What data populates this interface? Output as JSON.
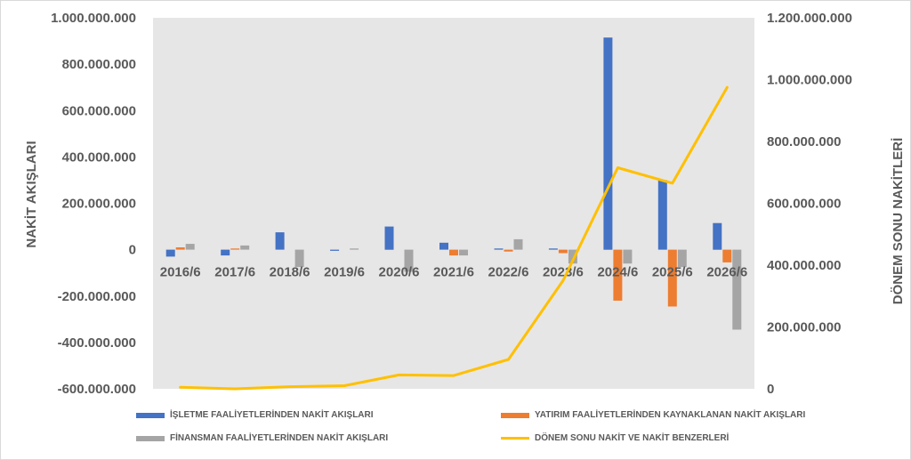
{
  "chart_data": {
    "type": "bar",
    "categories": [
      "2016/6",
      "2017/6",
      "2018/6",
      "2019/6",
      "2020/6",
      "2021/6",
      "2022/6",
      "2023/6",
      "2024/6",
      "2025/6",
      "2026/6"
    ],
    "series": [
      {
        "name": "İŞLETME FAALİYETLERİNDEN NAKİT AKIŞLARI",
        "type": "bar",
        "axis": "left",
        "color": "#4472C4",
        "values": [
          -30000000,
          -25000000,
          75000000,
          -5000000,
          100000000,
          30000000,
          5000000,
          5000000,
          915000000,
          300000000,
          115000000
        ]
      },
      {
        "name": "YATIRIM FAALİYETLERİNDEN KAYNAKLANAN NAKİT AKIŞLARI",
        "type": "bar",
        "axis": "left",
        "color": "#ED7D31",
        "values": [
          10000000,
          5000000,
          0,
          0,
          0,
          -25000000,
          -8000000,
          -15000000,
          -220000000,
          -245000000,
          -55000000
        ]
      },
      {
        "name": "FİNANSMAN FAALİYETLERİNDEN NAKİT AKIŞLARI",
        "type": "bar",
        "axis": "left",
        "color": "#A5A5A5",
        "values": [
          25000000,
          18000000,
          -75000000,
          5000000,
          -95000000,
          -25000000,
          45000000,
          -60000000,
          -60000000,
          -75000000,
          -345000000
        ]
      },
      {
        "name": "DÖNEM SONU NAKİT VE NAKİT BENZERLERİ",
        "type": "line",
        "axis": "right",
        "color": "#FFC000",
        "values": [
          5000000,
          0,
          7000000,
          10000000,
          45000000,
          43000000,
          95000000,
          350000000,
          715000000,
          665000000,
          975000000
        ]
      }
    ],
    "yaxis_left": {
      "label": "NAKİT AKIŞLARI",
      "min": -600000000,
      "max": 1000000000,
      "ticks": [
        "-600.000.000",
        "-400.000.000",
        "-200.000.000",
        "0",
        "200.000.000",
        "400.000.000",
        "600.000.000",
        "800.000.000",
        "1.000.000.000"
      ]
    },
    "yaxis_right": {
      "label": "DÖNEM SONU NAKİTLERİ",
      "min": 0,
      "max": 1200000000,
      "ticks": [
        "0",
        "200.000.000",
        "400.000.000",
        "600.000.000",
        "800.000.000",
        "1.000.000.000",
        "1.200.000.000"
      ]
    },
    "plot_background": "#E7E6E6",
    "legend_position": "bottom",
    "grid": false
  }
}
